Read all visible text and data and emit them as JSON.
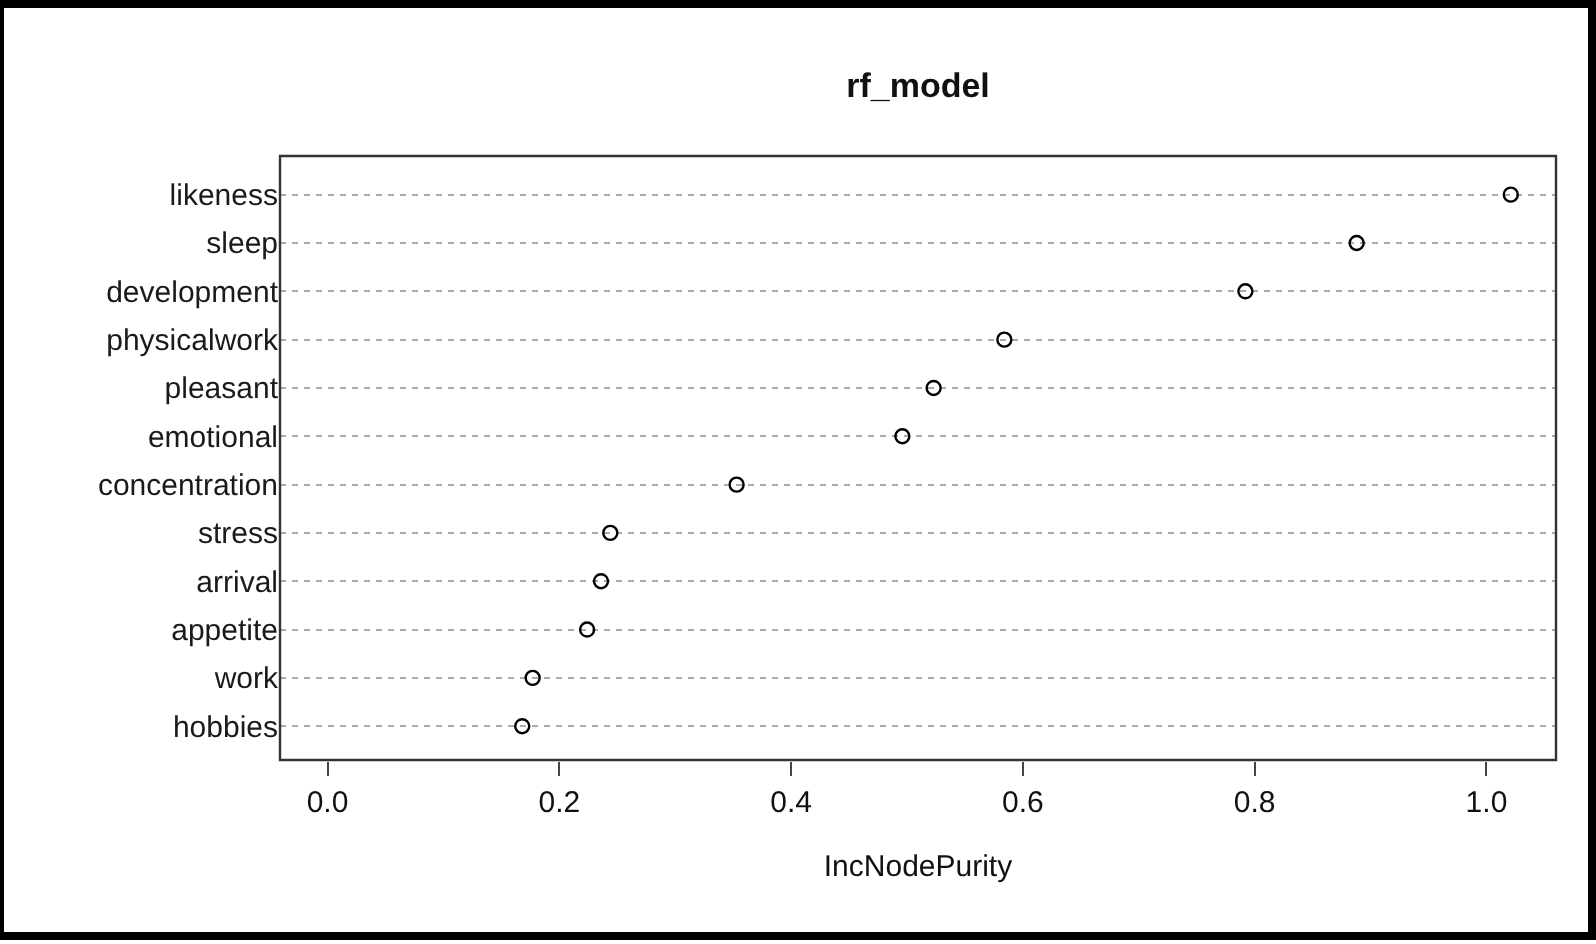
{
  "chart_data": {
    "type": "scatter",
    "orientation": "horizontal",
    "title": "rf_model",
    "xlabel": "IncNodePurity",
    "categories": [
      "likeness",
      "sleep",
      "development",
      "physicalwork",
      "pleasant",
      "emotional",
      "concentration",
      "stress",
      "arrival",
      "appetite",
      "work",
      "hobbies"
    ],
    "values": [
      1.021,
      0.888,
      0.792,
      0.584,
      0.523,
      0.496,
      0.353,
      0.244,
      0.236,
      0.224,
      0.177,
      0.168
    ],
    "color": "#000000",
    "marker": "circle",
    "grid": "y",
    "xlim": [
      -0.041,
      1.06
    ],
    "xticks": [
      {
        "value": 0,
        "label": "0.0"
      },
      {
        "value": 0.2,
        "label": "0.2"
      },
      {
        "value": 0.4,
        "label": "0.4"
      },
      {
        "value": 0.6,
        "label": "0.6"
      },
      {
        "value": 0.8,
        "label": "0.8"
      },
      {
        "value": 1.0,
        "label": "1.0"
      }
    ]
  }
}
